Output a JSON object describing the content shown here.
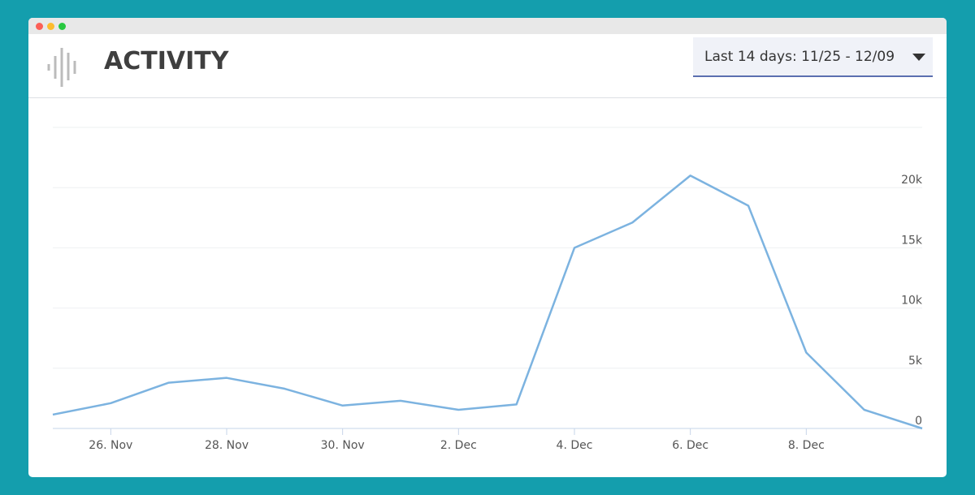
{
  "header": {
    "title": "ACTIVITY",
    "range": "Last 14 days: 11/25 - 12/09"
  },
  "chart_data": {
    "type": "line",
    "categories": [
      null,
      "26. Nov",
      null,
      "28. Nov",
      null,
      "30. Nov",
      null,
      "2. Dec",
      null,
      "4. Dec",
      null,
      "6. Dec",
      null,
      "8. Dec",
      null,
      null
    ],
    "values": [
      1150,
      2100,
      3800,
      4200,
      3300,
      1900,
      2300,
      1550,
      2000,
      15000,
      17100,
      21000,
      18500,
      6300,
      1550,
      0
    ],
    "color": "#7cb3e0",
    "ylim": [
      0,
      25000
    ],
    "yticks": [
      0,
      {
        "value": 5000,
        "label": "5k"
      },
      {
        "value": 10000,
        "label": "10k"
      },
      {
        "value": 15000,
        "label": "15k"
      },
      {
        "value": 20000,
        "label": "20k"
      }
    ],
    "grid": true
  }
}
